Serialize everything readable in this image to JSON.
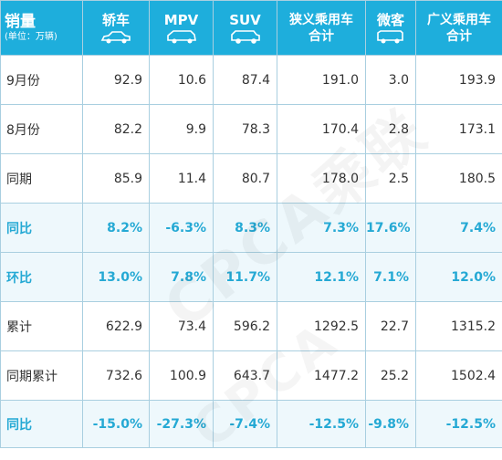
{
  "header": {
    "label_title": "销量",
    "label_unit": "(单位：万辆)",
    "columns": [
      "轿车",
      "MPV",
      "SUV",
      "狭义乘用车合计",
      "微客",
      "广义乘用车合计"
    ],
    "col3_line1": "狭义乘用车",
    "col3_line2": "合计",
    "col5_line1": "广义乘用车",
    "col5_line2": "合计",
    "icons": [
      "sedan-car-icon",
      "mpv-car-icon",
      "suv-car-icon",
      "",
      "minivan-icon",
      ""
    ]
  },
  "rows": [
    {
      "label": "9月份",
      "values": [
        "92.9",
        "10.6",
        "87.4",
        "191.0",
        "3.0",
        "193.9"
      ]
    },
    {
      "label": "8月份",
      "values": [
        "82.2",
        "9.9",
        "78.3",
        "170.4",
        "2.8",
        "173.1"
      ]
    },
    {
      "label": "同期",
      "values": [
        "85.9",
        "11.4",
        "80.7",
        "178.0",
        "2.5",
        "180.5"
      ]
    },
    {
      "label": "同比",
      "values": [
        "8.2%",
        "-6.3%",
        "8.3%",
        "7.3%",
        "17.6%",
        "7.4%"
      ]
    },
    {
      "label": "环比",
      "values": [
        "13.0%",
        "7.8%",
        "11.7%",
        "12.1%",
        "7.1%",
        "12.0%"
      ]
    },
    {
      "label": "累计",
      "values": [
        "622.9",
        "73.4",
        "596.2",
        "1292.5",
        "22.7",
        "1315.2"
      ]
    },
    {
      "label": "同期累计",
      "values": [
        "732.6",
        "100.9",
        "643.7",
        "1477.2",
        "25.2",
        "1502.4"
      ]
    },
    {
      "label": "同比",
      "values": [
        "-15.0%",
        "-27.3%",
        "-7.4%",
        "-12.5%",
        "-9.8%",
        "-12.5%"
      ]
    }
  ],
  "watermark": "CPCA乘联会",
  "colors": {
    "header_bg": "#1eaedc",
    "highlight_text": "#25a9d4",
    "highlight_bg": "#eef8fc",
    "border": "#a9cfe0"
  }
}
